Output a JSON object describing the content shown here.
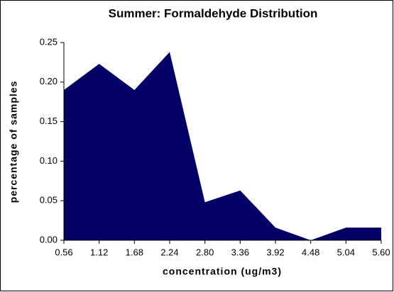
{
  "chart_data": {
    "type": "area",
    "title": "Summer:  Formaldehyde Distribution",
    "x_label": "concentration (ug/m3)",
    "y_label": "percentage of samples",
    "categories": [
      "0.56",
      "1.12",
      "1.68",
      "2.24",
      "2.80",
      "3.36",
      "3.92",
      "4.48",
      "5.04",
      "5.60"
    ],
    "values": [
      0.19,
      0.223,
      0.19,
      0.238,
      0.048,
      0.063,
      0.016,
      0.0,
      0.016,
      0.016
    ],
    "color": "#000066",
    "ylim": [
      0,
      0.25
    ],
    "yticks": [
      {
        "value": 0,
        "label": "0.00"
      },
      0.05,
      {
        "value": 0.1,
        "label": "0.10"
      },
      0.15,
      {
        "value": 0.2,
        "label": "0.20"
      },
      0.25
    ]
  }
}
